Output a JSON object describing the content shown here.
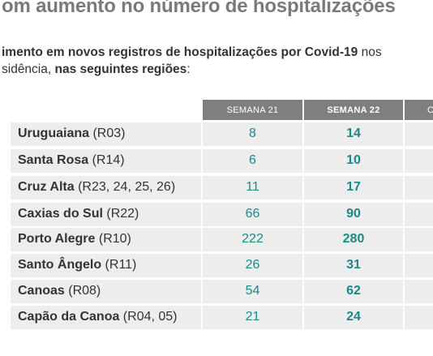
{
  "title": "om aumento no número de hospitalizações",
  "subtitle": {
    "line1_bold": "imento em novos registros de hospitalizações por Covid-19",
    "line1_rest": " nos",
    "line2_pre": "sidência, ",
    "line2_bold": "nas seguintes regiões",
    "line2_post": ":"
  },
  "columns": [
    "SEMANA  21",
    "SEMANA 22",
    "C"
  ],
  "rows": [
    {
      "name": "Uruguaiana",
      "code": " (R03)",
      "s21": "8",
      "s22": "14"
    },
    {
      "name": "Santa Rosa",
      "code": " (R14)",
      "s21": "6",
      "s22": "10"
    },
    {
      "name": "Cruz Alta",
      "code": " (R23, 24, 25, 26)",
      "s21": "11",
      "s22": "17"
    },
    {
      "name": "Caxias do Sul",
      "code": " (R22)",
      "s21": "66",
      "s22": "90"
    },
    {
      "name": "Porto Alegre",
      "code": " (R10)",
      "s21": "222",
      "s22": "280"
    },
    {
      "name": "Santo Ângelo",
      "code": " (R11)",
      "s21": "26",
      "s22": "31"
    },
    {
      "name": "Canoas",
      "code": " (R08)",
      "s21": "54",
      "s22": "62"
    },
    {
      "name": "Capão da Canoa",
      "code": " (R04, 05)",
      "s21": "21",
      "s22": "24"
    }
  ]
}
